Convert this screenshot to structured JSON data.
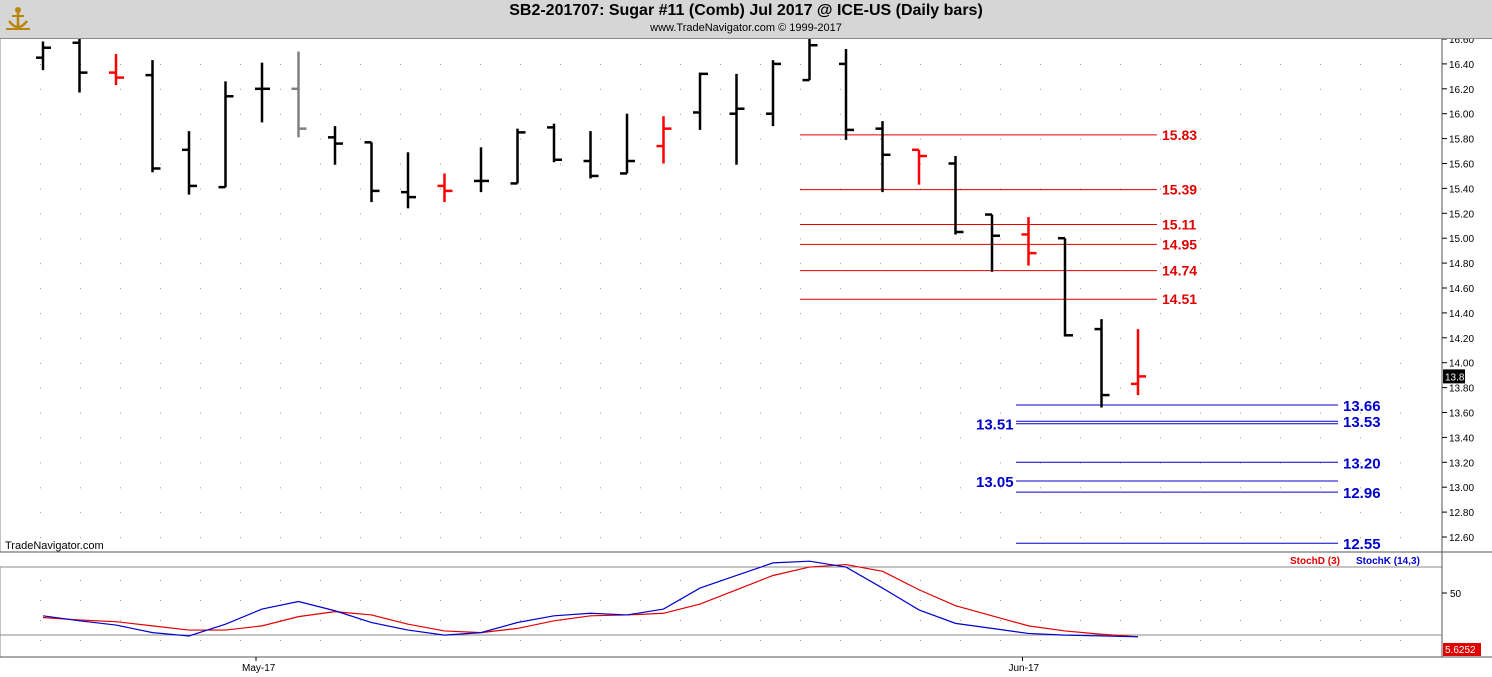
{
  "header": {
    "title": "SB2-201707:  Sugar #11 (Comb) Jul 2017 @ ICE-US  (Daily bars)",
    "subtitle": "www.TradeNavigator.com © 1999-2017",
    "watermark": "TradeNavigator.com"
  },
  "colors": {
    "up_bar": "#000000",
    "down_bar": "#ff0000",
    "green_tick": "#22cc22",
    "resistance_line": "#e00000",
    "support_line": "#0000cc",
    "stoch_d": "#e00000",
    "stoch_k": "#0000cc"
  },
  "chart_data": [
    {
      "type": "ohlc",
      "title": "SB2-201707:  Sugar #11 (Comb) Jul 2017 @ ICE-US  (Daily bars)",
      "ylim": [
        12.5,
        16.65
      ],
      "y_ticks": [
        "16.60",
        "16.40",
        "16.20",
        "16.00",
        "15.80",
        "15.60",
        "15.40",
        "15.20",
        "15.00",
        "14.80",
        "14.60",
        "14.40",
        "14.20",
        "14.00",
        "13.80",
        "13.60",
        "13.40",
        "13.20",
        "13.00",
        "12.80",
        "12.60"
      ],
      "x_labels": [
        {
          "label": "May-17",
          "index": 6
        },
        {
          "label": "Jun-17",
          "index": 27
        }
      ],
      "last_price": "13.89",
      "bars": [
        {
          "o": 16.45,
          "h": 16.58,
          "l": 16.35,
          "c": 16.53,
          "color": "black"
        },
        {
          "o": 16.57,
          "h": 16.6,
          "l": 16.17,
          "c": 16.33,
          "color": "black"
        },
        {
          "o": 16.33,
          "h": 16.48,
          "l": 16.23,
          "c": 16.29,
          "color": "red"
        },
        {
          "o": 16.31,
          "h": 16.43,
          "l": 15.53,
          "c": 15.56,
          "color": "black"
        },
        {
          "o": 15.71,
          "h": 15.86,
          "l": 15.35,
          "c": 15.42,
          "color": "black"
        },
        {
          "o": 15.41,
          "h": 16.26,
          "l": 15.41,
          "c": 16.14,
          "color": "black"
        },
        {
          "o": 16.2,
          "h": 16.41,
          "l": 15.93,
          "c": 16.2,
          "color": "black"
        },
        {
          "o": 16.2,
          "h": 16.5,
          "l": 15.81,
          "c": 15.88,
          "color": "grey"
        },
        {
          "o": 15.81,
          "h": 15.9,
          "l": 15.59,
          "c": 15.76,
          "color": "black"
        },
        {
          "o": 15.77,
          "h": 15.77,
          "l": 15.29,
          "c": 15.38,
          "color": "black"
        },
        {
          "o": 15.37,
          "h": 15.69,
          "l": 15.24,
          "c": 15.33,
          "color": "black"
        },
        {
          "o": 15.42,
          "h": 15.52,
          "l": 15.29,
          "c": 15.38,
          "color": "red"
        },
        {
          "o": 15.46,
          "h": 15.73,
          "l": 15.37,
          "c": 15.46,
          "color": "black"
        },
        {
          "o": 15.44,
          "h": 15.88,
          "l": 15.44,
          "c": 15.85,
          "color": "black"
        },
        {
          "o": 15.89,
          "h": 15.92,
          "l": 15.61,
          "c": 15.63,
          "color": "black"
        },
        {
          "o": 15.62,
          "h": 15.86,
          "l": 15.48,
          "c": 15.5,
          "color": "black"
        },
        {
          "o": 15.52,
          "h": 16.0,
          "l": 15.52,
          "c": 15.62,
          "color": "black"
        },
        {
          "o": 15.74,
          "h": 15.98,
          "l": 15.6,
          "c": 15.88,
          "color": "red"
        },
        {
          "o": 16.01,
          "h": 16.33,
          "l": 15.87,
          "c": 16.32,
          "color": "black"
        },
        {
          "o": 16.0,
          "h": 16.32,
          "l": 15.59,
          "c": 16.04,
          "color": "black"
        },
        {
          "o": 16.0,
          "h": 16.43,
          "l": 15.9,
          "c": 16.4,
          "color": "black"
        },
        {
          "o": 16.27,
          "h": 16.7,
          "l": 16.27,
          "c": 16.55,
          "color": "black"
        },
        {
          "o": 16.4,
          "h": 16.52,
          "l": 15.79,
          "c": 15.87,
          "color": "black"
        },
        {
          "o": 15.88,
          "h": 15.94,
          "l": 15.37,
          "c": 15.67,
          "color": "black"
        },
        {
          "o": 15.71,
          "h": 15.71,
          "l": 15.43,
          "c": 15.66,
          "color": "red"
        },
        {
          "o": 15.6,
          "h": 15.66,
          "l": 15.03,
          "c": 15.05,
          "color": "black"
        },
        {
          "o": 15.19,
          "h": 15.19,
          "l": 14.73,
          "c": 15.02,
          "color": "black"
        },
        {
          "o": 15.03,
          "h": 15.17,
          "l": 14.78,
          "c": 14.88,
          "color": "red"
        },
        {
          "o": 15.0,
          "h": 15.0,
          "l": 14.21,
          "c": 14.22,
          "color": "black"
        },
        {
          "o": 14.27,
          "h": 14.35,
          "l": 13.64,
          "c": 13.74,
          "color": "black"
        },
        {
          "o": 13.83,
          "h": 14.27,
          "l": 13.74,
          "c": 13.89,
          "color": "red"
        }
      ],
      "resistance_levels": [
        "15.83",
        "15.39",
        "15.11",
        "14.95",
        "14.74",
        "14.51"
      ],
      "support_levels_right": [
        "13.66",
        "13.53",
        "13.20",
        "12.96",
        "12.55"
      ],
      "support_levels_left": [
        "13.51",
        "13.05"
      ]
    },
    {
      "type": "line",
      "series": [
        {
          "name": "StochD (3)",
          "color": "#e00000",
          "values": [
            28,
            25,
            23,
            18,
            13,
            13,
            18,
            29,
            35,
            31,
            20,
            12,
            10,
            15,
            24,
            30,
            31,
            33,
            44,
            61,
            78,
            88,
            91,
            83,
            61,
            42,
            30,
            18,
            12,
            8,
            5
          ]
        },
        {
          "name": "StochK (14,3)",
          "color": "#0000cc",
          "values": [
            30,
            24,
            19,
            10,
            6,
            20,
            38,
            47,
            36,
            22,
            13,
            7,
            10,
            22,
            30,
            33,
            31,
            38,
            63,
            78,
            93,
            95,
            88,
            63,
            37,
            21,
            15,
            9,
            7,
            6,
            5
          ]
        }
      ],
      "ylim": [
        0,
        100
      ],
      "y_tick": "50",
      "last_value": "5.6252"
    }
  ]
}
